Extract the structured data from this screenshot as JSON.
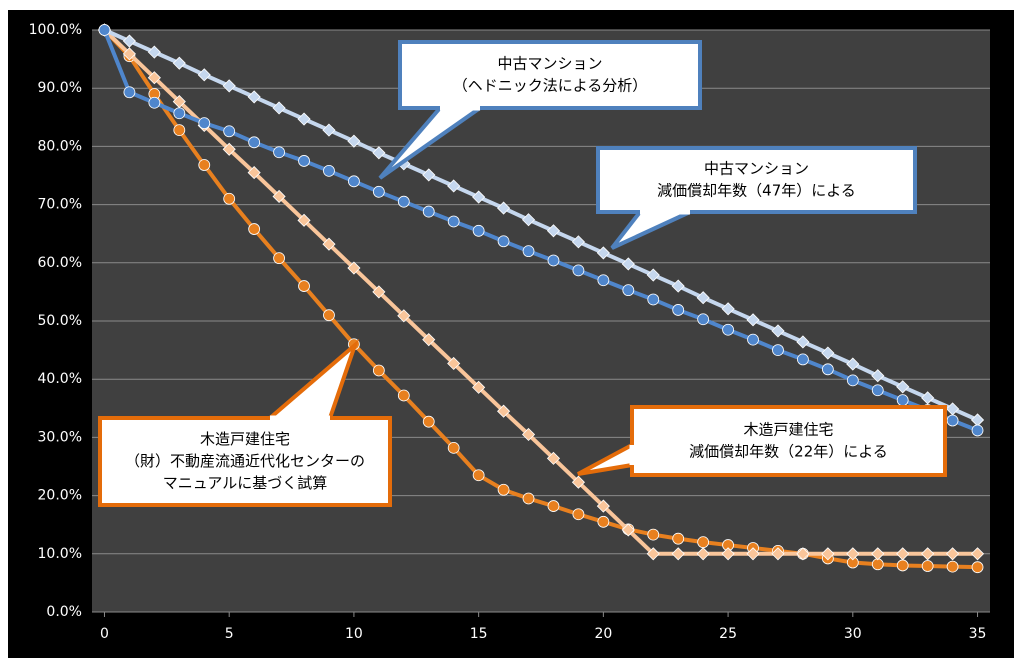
{
  "chart_data": {
    "type": "line",
    "x": [
      0,
      1,
      2,
      3,
      4,
      5,
      6,
      7,
      8,
      9,
      10,
      11,
      12,
      13,
      14,
      15,
      16,
      17,
      18,
      19,
      20,
      21,
      22,
      23,
      24,
      25,
      26,
      27,
      28,
      29,
      30,
      31,
      32,
      33,
      34,
      35
    ],
    "xlim": [
      -0.5,
      35.5
    ],
    "xticks": [
      0,
      5,
      10,
      15,
      20,
      25,
      30,
      35
    ],
    "ylim": [
      0,
      100
    ],
    "yticks": [
      {
        "value": 0,
        "label": "0.0%"
      },
      {
        "value": 10,
        "label": "10.0%"
      },
      {
        "value": 20,
        "label": "20.0%"
      },
      {
        "value": 30,
        "label": "30.0%"
      },
      {
        "value": 40,
        "label": "40.0%"
      },
      {
        "value": 50,
        "label": "50.0%"
      },
      {
        "value": 60,
        "label": "60.0%"
      },
      {
        "value": 70,
        "label": "70.0%"
      },
      {
        "value": 80,
        "label": "80.0%"
      },
      {
        "value": 90,
        "label": "90.0%"
      },
      {
        "value": 100,
        "label": "100.0%"
      }
    ],
    "grid": true,
    "series": [
      {
        "color": "#e8801f",
        "marker": "circle",
        "values": [
          100,
          95.5,
          89,
          82.8,
          76.8,
          71,
          65.8,
          60.8,
          56,
          51,
          46,
          41.5,
          37.2,
          32.7,
          28.2,
          23.5,
          21,
          19.5,
          18.2,
          16.8,
          15.5,
          14.2,
          13.3,
          12.6,
          12,
          11.5,
          11,
          10.5,
          10,
          9.2,
          8.5,
          8.2,
          8,
          7.9,
          7.8,
          7.7
        ]
      },
      {
        "color": "#f9c59a",
        "marker": "diamond",
        "values": [
          100,
          95.9,
          91.8,
          87.7,
          83.6,
          79.5,
          75.5,
          71.4,
          67.3,
          63.2,
          59.1,
          55.0,
          50.9,
          46.8,
          42.7,
          38.6,
          34.5,
          30.5,
          26.4,
          22.3,
          18.2,
          14.1,
          10,
          10,
          10,
          10,
          10,
          10,
          10,
          10,
          10,
          10,
          10,
          10,
          10,
          10
        ]
      },
      {
        "color": "#c5d7ee",
        "marker": "diamond",
        "values": [
          100,
          98.1,
          96.2,
          94.3,
          92.3,
          90.4,
          88.5,
          86.6,
          84.7,
          82.8,
          80.9,
          78.9,
          77.0,
          75.1,
          73.2,
          71.3,
          69.4,
          67.4,
          65.5,
          63.6,
          61.7,
          59.8,
          57.9,
          56.0,
          54.0,
          52.1,
          50.2,
          48.3,
          46.4,
          44.5,
          42.6,
          40.6,
          38.7,
          36.8,
          34.9,
          33.0
        ]
      },
      {
        "color": "#4f86cc",
        "marker": "circle",
        "values": [
          100,
          89.3,
          87.5,
          85.7,
          84.0,
          82.6,
          80.7,
          79.0,
          77.5,
          75.8,
          74.0,
          72.2,
          70.5,
          68.8,
          67.1,
          65.5,
          63.7,
          62.0,
          60.4,
          58.7,
          57.0,
          55.3,
          53.7,
          51.9,
          50.3,
          48.5,
          46.8,
          45.0,
          43.4,
          41.7,
          39.8,
          38.1,
          36.4,
          34.7,
          32.9,
          31.2
        ]
      }
    ],
    "annotations": [
      {
        "color": "#4f81bd",
        "lines": [
          "中古マンション",
          "（ヘドニック法による分析）"
        ]
      },
      {
        "color": "#4f81bd",
        "lines": [
          "中古マンション",
          "減価償却年数（47年）による"
        ]
      },
      {
        "color": "#e46c0a",
        "lines": [
          "木造戸建住宅",
          "（財）不動産流通近代化センターの",
          "マニュアルに基づく試算"
        ]
      },
      {
        "color": "#e46c0a",
        "lines": [
          "木造戸建住宅",
          "減価償却年数（22年）による"
        ]
      }
    ]
  }
}
